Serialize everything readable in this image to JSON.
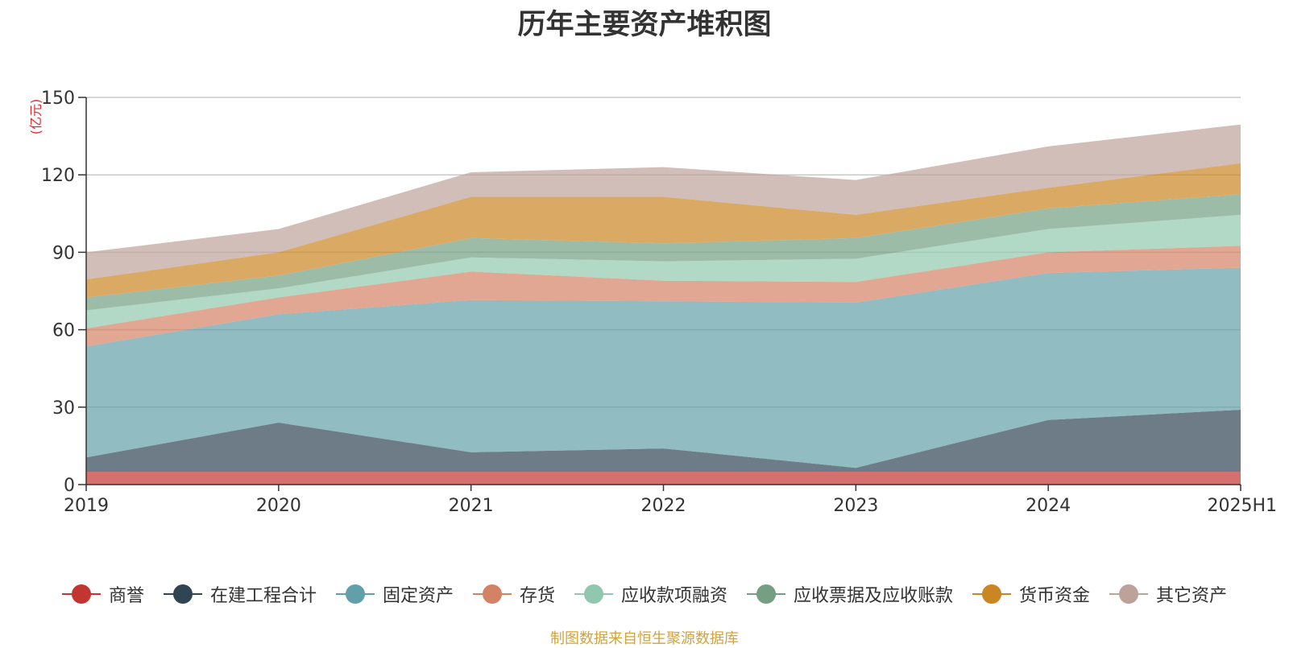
{
  "chart_data": {
    "type": "area",
    "stacked": true,
    "title": "历年主要资产堆积图",
    "ylabel": "(亿元)",
    "xlabel": "",
    "categories": [
      "2019",
      "2020",
      "2021",
      "2022",
      "2023",
      "2024",
      "2025H1"
    ],
    "ylim": [
      0,
      150
    ],
    "yticks": [
      0,
      30,
      60,
      90,
      120,
      150
    ],
    "grid": true,
    "legend_position": "bottom",
    "series": [
      {
        "name": "商誉",
        "color": "#c23531",
        "values": [
          5,
          5,
          5,
          5,
          5,
          5,
          5
        ]
      },
      {
        "name": "在建工程合计",
        "color": "#2f4554",
        "values": [
          5.5,
          19,
          7.5,
          9,
          1.5,
          20,
          24
        ]
      },
      {
        "name": "固定资产",
        "color": "#61a0a8",
        "values": [
          43,
          42,
          59,
          57,
          64,
          57,
          55
        ]
      },
      {
        "name": "存货",
        "color": "#d48265",
        "values": [
          7,
          6.5,
          11,
          8,
          8,
          8,
          8.5
        ]
      },
      {
        "name": "应收款项融资",
        "color": "#91c7ae",
        "values": [
          7,
          3.5,
          5.5,
          7.5,
          9,
          9,
          12
        ]
      },
      {
        "name": "应收票据及应收账款",
        "color": "#749f83",
        "values": [
          5,
          5,
          7.5,
          7,
          8,
          8,
          8
        ]
      },
      {
        "name": "货币资金",
        "color": "#ca8622",
        "values": [
          7,
          9,
          16,
          18,
          9,
          8,
          12
        ]
      },
      {
        "name": "其它资产",
        "color": "#bda29a",
        "values": [
          10.5,
          9,
          9.5,
          11.5,
          13.5,
          16,
          15
        ]
      }
    ]
  },
  "source_note": "制图数据来自恒生聚源数据库"
}
